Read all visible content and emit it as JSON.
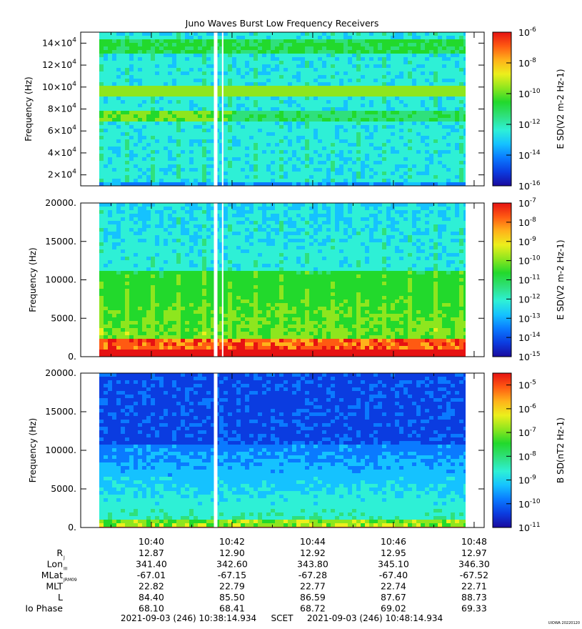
{
  "title": "Juno Waves Burst Low Frequency Receivers",
  "credit": "UIOWA 20220120",
  "colors": {
    "gap": "#ffffff",
    "frame": "#000000"
  },
  "colormap": [
    "#1a0a9e",
    "#0b3ce0",
    "#0a7aff",
    "#15c2ff",
    "#2ef0d6",
    "#2fe07c",
    "#22d92c",
    "#8ee61e",
    "#ecef1c",
    "#ffb21a",
    "#ff5a12",
    "#e61212"
  ],
  "chart_data": [
    {
      "type": "heatmap",
      "panel": "top",
      "ylabel": "Frequency (Hz)",
      "yticks": [
        {
          "value": 20000,
          "mant": "2x10",
          "exp": "4"
        },
        {
          "value": 40000,
          "mant": "4x10",
          "exp": "4"
        },
        {
          "value": 60000,
          "mant": "6x10",
          "exp": "4"
        },
        {
          "value": 80000,
          "mant": "8x10",
          "exp": "4"
        },
        {
          "value": 100000,
          "mant": "10x10",
          "exp": "4"
        },
        {
          "value": 120000,
          "mant": "12x10",
          "exp": "4"
        },
        {
          "value": 140000,
          "mant": "14x10",
          "exp": "4"
        }
      ],
      "ylim": [
        10000,
        150000
      ],
      "colorbar": {
        "label": "E SD(V2 m-2 Hz-1)",
        "scale": "log",
        "range_exp": [
          -16,
          -6
        ],
        "ticks": [
          {
            "exp": "-6",
            "value": -6
          },
          {
            "exp": "-8",
            "value": -8
          },
          {
            "exp": "-10",
            "value": -10
          },
          {
            "exp": "-12",
            "value": -12
          },
          {
            "exp": "-14",
            "value": -14
          },
          {
            "exp": "-16",
            "value": -16
          }
        ]
      },
      "features": [
        {
          "band_hz": [
            70000,
            78000
          ],
          "level": 6.2
        },
        {
          "band_hz": [
            90000,
            102000
          ],
          "level": 6.6
        },
        {
          "band_hz": [
            132000,
            142000
          ],
          "level": 5.2
        }
      ],
      "data_gaps_min": [
        3.55,
        3.75
      ]
    },
    {
      "type": "heatmap",
      "panel": "middle",
      "ylabel": "Frequency (Hz)",
      "yticks": [
        {
          "value": 0,
          "label": "0."
        },
        {
          "value": 5000,
          "label": "5000."
        },
        {
          "value": 10000,
          "label": "10000."
        },
        {
          "value": 15000,
          "label": "15000."
        },
        {
          "value": 20000,
          "label": "20000."
        }
      ],
      "ylim": [
        0,
        20000
      ],
      "colorbar": {
        "label": "E SD(V2 m-2 Hz-1)",
        "scale": "log",
        "range_exp": [
          -15,
          -7
        ],
        "ticks": [
          {
            "exp": "-7",
            "value": -7
          },
          {
            "exp": "-8",
            "value": -8
          },
          {
            "exp": "-9",
            "value": -9
          },
          {
            "exp": "-10",
            "value": -10
          },
          {
            "exp": "-11",
            "value": -11
          },
          {
            "exp": "-12",
            "value": -12
          },
          {
            "exp": "-13",
            "value": -13
          },
          {
            "exp": "-14",
            "value": -14
          },
          {
            "exp": "-15",
            "value": -15
          }
        ]
      },
      "features": [
        {
          "event_min": 6.0,
          "max_freq_hz": 10500
        },
        {
          "low_band_hz": [
            0,
            2000
          ]
        }
      ],
      "data_gaps_min": [
        3.55,
        3.75
      ]
    },
    {
      "type": "heatmap",
      "panel": "bottom",
      "ylabel": "Frequency (Hz)",
      "yticks": [
        {
          "value": 0,
          "label": "0."
        },
        {
          "value": 5000,
          "label": "5000."
        },
        {
          "value": 10000,
          "label": "10000."
        },
        {
          "value": 15000,
          "label": "15000."
        },
        {
          "value": 20000,
          "label": "20000."
        }
      ],
      "ylim": [
        0,
        20000
      ],
      "colorbar": {
        "label": "B SD(nT2 Hz-1)",
        "scale": "log",
        "range_exp": [
          -11,
          -4.5
        ],
        "ticks": [
          {
            "exp": "-5",
            "value": -5
          },
          {
            "exp": "-6",
            "value": -6
          },
          {
            "exp": "-7",
            "value": -7
          },
          {
            "exp": "-8",
            "value": -8
          },
          {
            "exp": "-9",
            "value": -9
          },
          {
            "exp": "-10",
            "value": -10
          },
          {
            "exp": "-11",
            "value": -11
          }
        ]
      },
      "features": [
        {
          "event_min": 6.0,
          "max_freq_hz": 10500
        },
        {
          "low_band_hz": [
            0,
            1000
          ]
        }
      ],
      "data_gaps_min": [
        3.55
      ]
    }
  ],
  "xaxis": {
    "time_range": [
      "10:38:14.934",
      "10:48:14.934"
    ],
    "ticks": [
      {
        "label": "10:40",
        "minute": 40
      },
      {
        "label": "10:42",
        "minute": 42
      },
      {
        "label": "10:44",
        "minute": 44
      },
      {
        "label": "10:46",
        "minute": 46
      },
      {
        "label": "10:48",
        "minute": 48
      }
    ]
  },
  "ephemeris": {
    "rows": [
      {
        "label": "R",
        "sub": "J",
        "values": [
          "12.87",
          "12.90",
          "12.92",
          "12.95",
          "12.97"
        ]
      },
      {
        "label": "Lon",
        "sub": "III",
        "values": [
          "341.40",
          "342.60",
          "343.80",
          "345.10",
          "346.30"
        ]
      },
      {
        "label": "MLat",
        "sub": "JRM09",
        "values": [
          "-67.01",
          "-67.15",
          "-67.28",
          "-67.40",
          "-67.52"
        ]
      },
      {
        "label": "MLT",
        "sub": "",
        "values": [
          "22.82",
          "22.79",
          "22.77",
          "22.74",
          "22.71"
        ]
      },
      {
        "label": "L",
        "sub": "",
        "values": [
          "84.40",
          "85.50",
          "86.59",
          "87.67",
          "88.73"
        ]
      },
      {
        "label": "Io Phase",
        "sub": "",
        "values": [
          "68.10",
          "68.41",
          "68.72",
          "69.02",
          "69.33"
        ]
      }
    ]
  },
  "footer": {
    "start": "2021-09-03 (246) 10:38:14.934",
    "scet": "SCET",
    "end": "2021-09-03 (246) 10:48:14.934"
  }
}
